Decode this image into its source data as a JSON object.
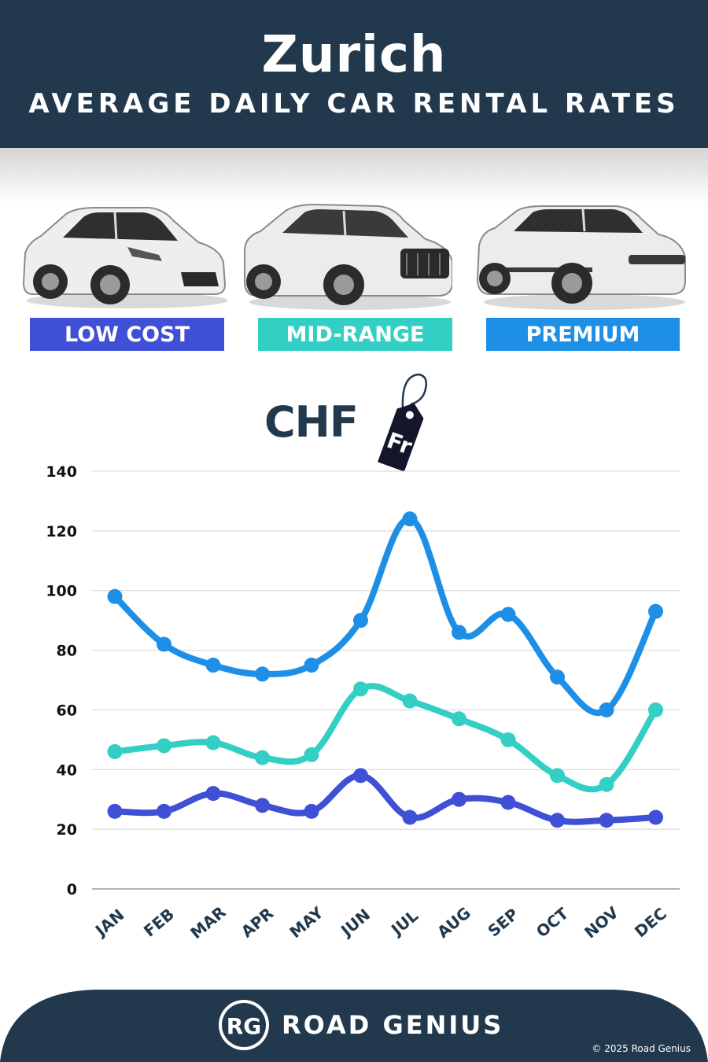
{
  "header": {
    "city": "Zurich",
    "subtitle": "AVERAGE DAILY CAR RENTAL RATES"
  },
  "categories": [
    {
      "label": "LOW COST",
      "color": "#3f4fd6"
    },
    {
      "label": "MID-RANGE",
      "color": "#34cfc4"
    },
    {
      "label": "PREMIUM",
      "color": "#1e8fe6"
    }
  ],
  "currency": {
    "code": "CHF",
    "tag_symbol": "Fr"
  },
  "chart_data": {
    "type": "line",
    "categories": [
      "JAN",
      "FEB",
      "MAR",
      "APR",
      "MAY",
      "JUN",
      "JUL",
      "AUG",
      "SEP",
      "OCT",
      "NOV",
      "DEC"
    ],
    "series": [
      {
        "name": "PREMIUM",
        "color": "#1e8fe6",
        "values": [
          98,
          82,
          75,
          72,
          75,
          90,
          124,
          86,
          92,
          71,
          60,
          93
        ]
      },
      {
        "name": "MID-RANGE",
        "color": "#34cfc4",
        "values": [
          46,
          48,
          49,
          44,
          45,
          67,
          63,
          57,
          50,
          38,
          35,
          60
        ]
      },
      {
        "name": "LOW COST",
        "color": "#3f4fd6",
        "values": [
          26,
          26,
          32,
          28,
          26,
          38,
          24,
          30,
          29,
          23,
          23,
          24
        ]
      }
    ],
    "yticks": [
      0,
      20,
      40,
      60,
      80,
      100,
      120,
      140
    ],
    "ylim": [
      0,
      140
    ],
    "grid": true
  },
  "footer": {
    "brand_initials": "RG",
    "brand_name": "ROAD GENIUS",
    "copyright": "© 2025 Road Genius",
    "color": "#22394d"
  }
}
